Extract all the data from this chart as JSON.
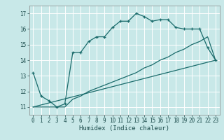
{
  "title": "",
  "xlabel": "Humidex (Indice chaleur)",
  "xlim": [
    -0.5,
    23.5
  ],
  "ylim": [
    10.5,
    17.5
  ],
  "yticks": [
    11,
    12,
    13,
    14,
    15,
    16,
    17
  ],
  "xticks": [
    0,
    1,
    2,
    3,
    4,
    5,
    6,
    7,
    8,
    9,
    10,
    11,
    12,
    13,
    14,
    15,
    16,
    17,
    18,
    19,
    20,
    21,
    22,
    23
  ],
  "bg_color": "#c8e8e8",
  "grid_color": "#ffffff",
  "line_color": "#1a6b6b",
  "line1_x": [
    0,
    1,
    2,
    3,
    4,
    5,
    6,
    7,
    8,
    9,
    10,
    11,
    12,
    13,
    14,
    15,
    16,
    17,
    18,
    19,
    20,
    21,
    22,
    23
  ],
  "line1_y": [
    13.2,
    11.7,
    11.4,
    11.0,
    11.2,
    14.5,
    14.5,
    15.2,
    15.5,
    15.5,
    16.1,
    16.5,
    16.5,
    17.0,
    16.8,
    16.5,
    16.6,
    16.6,
    16.1,
    16.0,
    16.0,
    16.0,
    14.8,
    14.0
  ],
  "line2_x": [
    0,
    1,
    2,
    3,
    4,
    5,
    6,
    7,
    8,
    9,
    10,
    11,
    12,
    13,
    14,
    15,
    16,
    17,
    18,
    19,
    20,
    21,
    22,
    23
  ],
  "line2_y": [
    11.0,
    11.0,
    11.0,
    11.0,
    11.0,
    11.5,
    11.7,
    12.0,
    12.2,
    12.4,
    12.6,
    12.8,
    13.0,
    13.2,
    13.5,
    13.7,
    14.0,
    14.2,
    14.5,
    14.7,
    15.0,
    15.2,
    15.5,
    14.0
  ],
  "line3_x": [
    0,
    23
  ],
  "line3_y": [
    11.0,
    14.0
  ]
}
